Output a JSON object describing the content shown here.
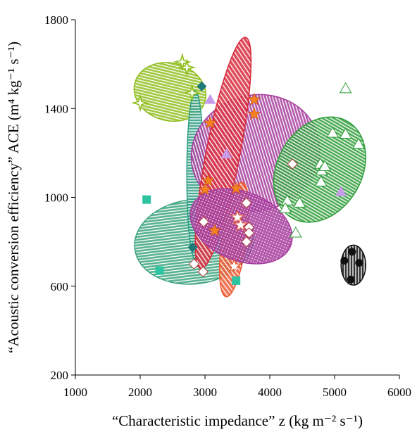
{
  "chart_data": {
    "type": "scatter",
    "title": "",
    "xlabel": "“Characteristic impedance” z (kg m⁻² s⁻¹)",
    "ylabel": "“Acoustic conversion efficiency” ACE (m⁴ kg⁻¹ s⁻¹)",
    "xlim": [
      1000,
      6000
    ],
    "ylim": [
      200,
      1800
    ],
    "xticks": [
      "1000",
      "2000",
      "3000",
      "4000",
      "5000",
      "6000"
    ],
    "yticks": [
      "200",
      "600",
      "1000",
      "1400",
      "1800"
    ],
    "grid": false,
    "groups": [
      {
        "ellipse": {
          "color": "#8fbd1c",
          "pattern": "hlines",
          "cx": 2460,
          "cy": 1475,
          "rx": 560,
          "ry": 130,
          "angle": 14
        },
        "marker": "star4",
        "markerColor": "#8fbd1c",
        "points": [
          [
            2650,
            1610
          ],
          [
            2720,
            1585
          ],
          [
            2800,
            1470
          ],
          [
            2000,
            1425
          ]
        ]
      },
      {
        "ellipse": {
          "color": "#3aa37c",
          "pattern": "hlines",
          "cx": 2830,
          "cy": 800,
          "rx": 920,
          "ry": 190,
          "angle": -7
        },
        "marker": "square",
        "markerColor": "#2ec4a2",
        "points": [
          [
            2100,
            990
          ],
          [
            2300,
            670
          ],
          [
            3480,
            625
          ]
        ]
      },
      {
        "ellipse": {
          "color": "#2e9e83",
          "pattern": "hlines",
          "cx": 2850,
          "cy": 1100,
          "rx": 130,
          "ry": 380,
          "angle": 0
        },
        "marker": "diamond",
        "markerColor": "#1d7a78",
        "points": [
          [
            2950,
            1500
          ],
          [
            2810,
            775
          ]
        ]
      },
      {
        "ellipse": {
          "color": "#a63c9c",
          "pattern": "vlines",
          "cx": 3780,
          "cy": 1200,
          "rx": 1000,
          "ry": 260,
          "angle": -17
        },
        "marker": "triangle",
        "markerColor": "#c89be8",
        "points": [
          [
            3080,
            1440
          ],
          [
            3330,
            1195
          ],
          [
            5100,
            1025
          ]
        ]
      },
      {
        "ellipse": {
          "color": "#d82a3c",
          "pattern": "diag",
          "cx": 3280,
          "cy": 1200,
          "rx": 260,
          "ry": 530,
          "angle": 11
        },
        "marker": "star",
        "markerColor": "#f5821f",
        "points": [
          [
            3080,
            1335
          ],
          [
            3050,
            1075
          ],
          [
            3000,
            1035
          ],
          [
            3150,
            850
          ],
          [
            3480,
            1040
          ],
          [
            3760,
            1440
          ],
          [
            3760,
            1375
          ]
        ]
      },
      {
        "ellipse": {
          "color": "#ef5a32",
          "pattern": "diag",
          "cx": 3450,
          "cy": 810,
          "rx": 190,
          "ry": 260,
          "angle": 8
        },
        "marker": "star-open",
        "markerColor": "#ef5a32",
        "points": [
          [
            3450,
            690
          ],
          [
            3500,
            910
          ],
          [
            3550,
            875
          ]
        ]
      },
      {
        "ellipse": {
          "color": "#a63c9c",
          "pattern": "dots",
          "cx": 3560,
          "cy": 870,
          "rx": 820,
          "ry": 155,
          "angle": 22
        },
        "marker": "diamond-open",
        "markerColor": "#b04040",
        "points": [
          [
            2980,
            890
          ],
          [
            2830,
            700
          ],
          [
            2970,
            665
          ],
          [
            3640,
            975
          ],
          [
            3680,
            865
          ],
          [
            3680,
            840
          ],
          [
            3640,
            800
          ],
          [
            4350,
            1150
          ]
        ]
      },
      {
        "ellipse": {
          "color": "#2f9e3a",
          "pattern": "vlines",
          "cx": 4770,
          "cy": 1125,
          "rx": 860,
          "ry": 190,
          "angle": -60
        },
        "marker": "triangle-open",
        "markerColor": "#2f9e3a",
        "points": [
          [
            5170,
            1490
          ],
          [
            4970,
            1290
          ],
          [
            5170,
            1285
          ],
          [
            5370,
            1240
          ],
          [
            4780,
            1150
          ],
          [
            4800,
            1120
          ],
          [
            4850,
            1140
          ],
          [
            4790,
            1070
          ],
          [
            4270,
            985
          ],
          [
            4460,
            975
          ],
          [
            4240,
            950
          ],
          [
            4400,
            840
          ]
        ]
      },
      {
        "ellipse": {
          "color": "#111111",
          "pattern": "vlines",
          "cx": 5290,
          "cy": 695,
          "rx": 190,
          "ry": 90,
          "angle": 0
        },
        "marker": "circle",
        "markerColor": "#111111",
        "points": [
          [
            5150,
            715
          ],
          [
            5270,
            755
          ],
          [
            5380,
            705
          ],
          [
            5250,
            630
          ]
        ]
      }
    ]
  }
}
